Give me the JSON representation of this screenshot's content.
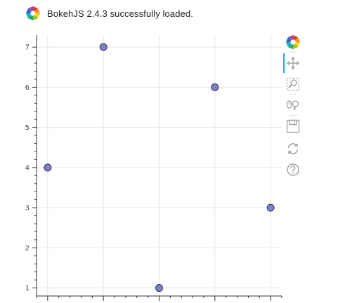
{
  "banner": {
    "text": "BokehJS 2.4.3 successfully loaded.",
    "logo_icon": "bokeh-logo-icon"
  },
  "toolbar": {
    "tools": [
      {
        "name": "bokeh-logo-icon",
        "active": false
      },
      {
        "name": "pan-icon",
        "active": true
      },
      {
        "name": "box-zoom-icon",
        "active": false
      },
      {
        "name": "wheel-zoom-icon",
        "active": false
      },
      {
        "name": "save-icon",
        "active": false
      },
      {
        "name": "reset-icon",
        "active": false
      },
      {
        "name": "help-icon",
        "active": false
      }
    ]
  },
  "chart_data": {
    "type": "scatter",
    "x": [
      1,
      2,
      3,
      4,
      5
    ],
    "y": [
      4,
      7,
      1,
      6,
      3
    ],
    "title": "",
    "xlabel": "",
    "ylabel": "",
    "xlim": [
      0.8,
      5.2
    ],
    "ylim": [
      0.8,
      7.3
    ],
    "y_ticks": [
      1,
      2,
      3,
      4,
      5,
      6,
      7
    ],
    "x_major_ticks": [
      1,
      2,
      3,
      4,
      5
    ],
    "x_tick_labels_visible": false,
    "grid": true,
    "marker": {
      "shape": "circle",
      "fill": "#6b6bb4",
      "stroke": "#2d2d7a"
    }
  }
}
